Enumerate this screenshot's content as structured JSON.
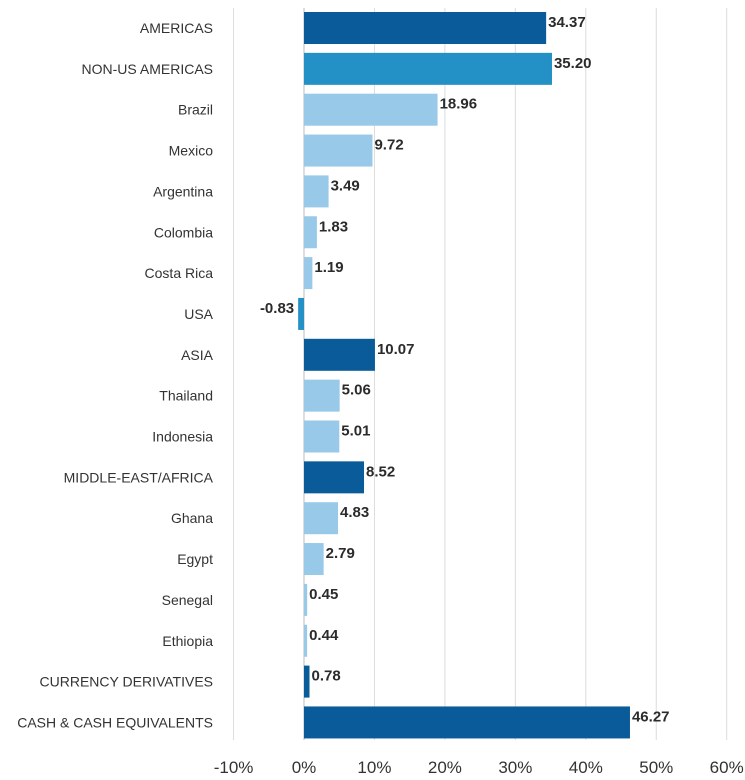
{
  "chart_data": {
    "type": "bar",
    "orientation": "horizontal",
    "title": "",
    "xlabel": "",
    "ylabel": "",
    "xlim": [
      -10,
      60
    ],
    "ticks": [
      -10,
      0,
      10,
      20,
      30,
      40,
      50,
      60
    ],
    "tick_labels": [
      "-10%",
      "0%",
      "10%",
      "20%",
      "30%",
      "40%",
      "50%",
      "60%"
    ],
    "grid": "vertical",
    "legend": "none",
    "colors": {
      "region": "#0a5b9a",
      "sub_region": "#2390c6",
      "country": "#98c9e8",
      "negative": "#2390c6"
    },
    "categories": [
      "AMERICAS",
      "NON-US AMERICAS",
      "Brazil",
      "Mexico",
      "Argentina",
      "Colombia",
      "Costa Rica",
      "USA",
      "ASIA",
      "Thailand",
      "Indonesia",
      "MIDDLE-EAST/AFRICA",
      "Ghana",
      "Egypt",
      "Senegal",
      "Ethiopia",
      "CURRENCY DERIVATIVES",
      "CASH & CASH EQUIVALENTS"
    ],
    "values": [
      34.37,
      35.2,
      18.96,
      9.72,
      3.49,
      1.83,
      1.19,
      -0.83,
      10.07,
      5.06,
      5.01,
      8.52,
      4.83,
      2.79,
      0.45,
      0.44,
      0.78,
      46.27
    ],
    "value_labels": [
      "34.37",
      "35.20",
      "18.96",
      "9.72",
      "3.49",
      "1.83",
      "1.19",
      "-0.83",
      "10.07",
      "5.06",
      "5.01",
      "8.52",
      "4.83",
      "2.79",
      "0.45",
      "0.44",
      "0.78",
      "46.27"
    ],
    "bar_levels": [
      "region",
      "sub_region",
      "country",
      "country",
      "country",
      "country",
      "country",
      "negative",
      "region",
      "country",
      "country",
      "region",
      "country",
      "country",
      "country",
      "country",
      "region",
      "region"
    ]
  }
}
